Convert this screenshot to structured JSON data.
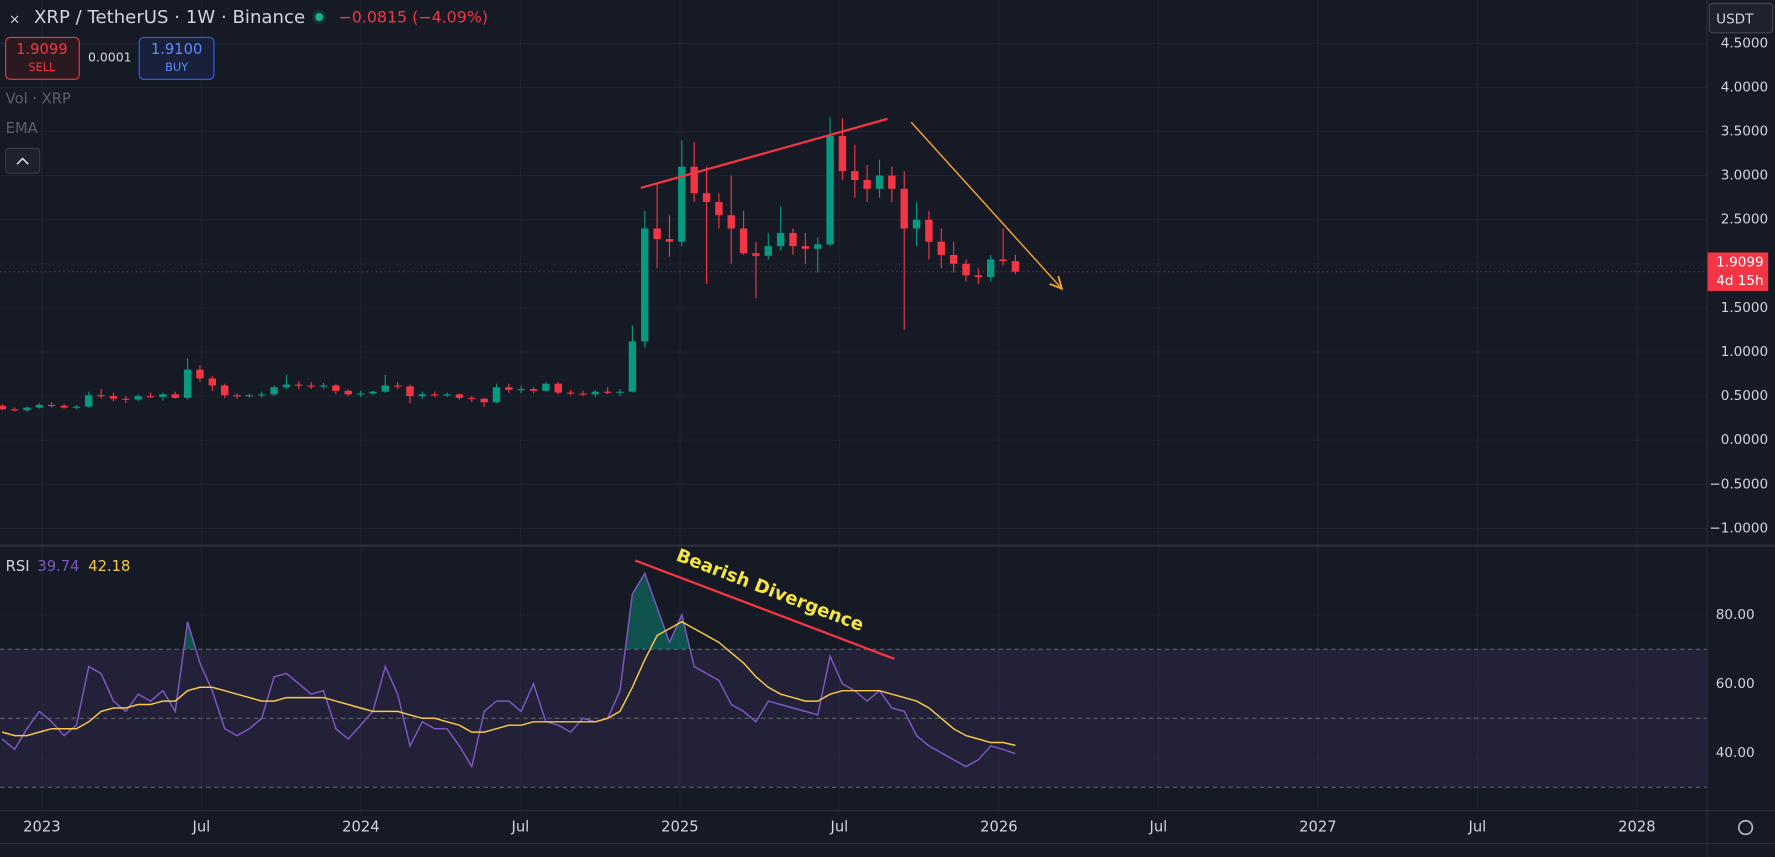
{
  "header": {
    "symbol": "XRP / TetherUS · 1W · Binance",
    "change": "−0.0815 (−4.09%)",
    "sell_price": "1.9099",
    "sell_label": "SELL",
    "spread": "0.0001",
    "buy_price": "1.9100",
    "buy_label": "BUY",
    "indicators": [
      "Vol · XRP",
      "EMA"
    ],
    "currency": "USDT"
  },
  "annotations": {
    "divergence": "Bearish Divergence"
  },
  "chart_data": [
    {
      "type": "candlestick",
      "up_color": "#089981",
      "down_color": "#f23645",
      "candles": [
        [
          0.39,
          0.41,
          0.34,
          0.35
        ],
        [
          0.35,
          0.37,
          0.33,
          0.34
        ],
        [
          0.34,
          0.38,
          0.32,
          0.37
        ],
        [
          0.37,
          0.42,
          0.36,
          0.4
        ],
        [
          0.4,
          0.43,
          0.37,
          0.39
        ],
        [
          0.39,
          0.41,
          0.36,
          0.37
        ],
        [
          0.37,
          0.4,
          0.35,
          0.38
        ],
        [
          0.38,
          0.55,
          0.37,
          0.51
        ],
        [
          0.51,
          0.58,
          0.47,
          0.5
        ],
        [
          0.5,
          0.54,
          0.44,
          0.47
        ],
        [
          0.47,
          0.5,
          0.42,
          0.46
        ],
        [
          0.46,
          0.52,
          0.44,
          0.5
        ],
        [
          0.5,
          0.54,
          0.48,
          0.49
        ],
        [
          0.49,
          0.54,
          0.45,
          0.52
        ],
        [
          0.52,
          0.55,
          0.47,
          0.48
        ],
        [
          0.48,
          0.93,
          0.46,
          0.8
        ],
        [
          0.8,
          0.85,
          0.66,
          0.7
        ],
        [
          0.7,
          0.73,
          0.56,
          0.62
        ],
        [
          0.62,
          0.64,
          0.48,
          0.51
        ],
        [
          0.51,
          0.53,
          0.47,
          0.5
        ],
        [
          0.5,
          0.53,
          0.48,
          0.51
        ],
        [
          0.51,
          0.55,
          0.48,
          0.52
        ],
        [
          0.52,
          0.62,
          0.5,
          0.6
        ],
        [
          0.6,
          0.74,
          0.58,
          0.63
        ],
        [
          0.63,
          0.67,
          0.58,
          0.62
        ],
        [
          0.62,
          0.66,
          0.58,
          0.61
        ],
        [
          0.61,
          0.65,
          0.58,
          0.62
        ],
        [
          0.62,
          0.64,
          0.52,
          0.56
        ],
        [
          0.56,
          0.58,
          0.5,
          0.52
        ],
        [
          0.52,
          0.56,
          0.49,
          0.53
        ],
        [
          0.53,
          0.56,
          0.51,
          0.55
        ],
        [
          0.55,
          0.74,
          0.54,
          0.62
        ],
        [
          0.62,
          0.66,
          0.58,
          0.61
        ],
        [
          0.61,
          0.63,
          0.42,
          0.5
        ],
        [
          0.5,
          0.55,
          0.47,
          0.52
        ],
        [
          0.52,
          0.55,
          0.49,
          0.51
        ],
        [
          0.51,
          0.54,
          0.49,
          0.52
        ],
        [
          0.52,
          0.53,
          0.46,
          0.48
        ],
        [
          0.48,
          0.5,
          0.43,
          0.47
        ],
        [
          0.47,
          0.48,
          0.38,
          0.43
        ],
        [
          0.43,
          0.64,
          0.42,
          0.6
        ],
        [
          0.6,
          0.64,
          0.54,
          0.57
        ],
        [
          0.57,
          0.62,
          0.53,
          0.58
        ],
        [
          0.58,
          0.6,
          0.53,
          0.56
        ],
        [
          0.56,
          0.66,
          0.55,
          0.64
        ],
        [
          0.64,
          0.66,
          0.52,
          0.54
        ],
        [
          0.54,
          0.57,
          0.51,
          0.53
        ],
        [
          0.53,
          0.56,
          0.5,
          0.52
        ],
        [
          0.52,
          0.57,
          0.49,
          0.55
        ],
        [
          0.55,
          0.6,
          0.52,
          0.54
        ],
        [
          0.54,
          0.58,
          0.5,
          0.55
        ],
        [
          0.55,
          1.3,
          0.54,
          1.12
        ],
        [
          1.12,
          2.6,
          1.05,
          2.4
        ],
        [
          2.4,
          2.91,
          1.95,
          2.28
        ],
        [
          2.28,
          2.55,
          2.08,
          2.25
        ],
        [
          2.25,
          3.4,
          2.2,
          3.1
        ],
        [
          3.1,
          3.38,
          2.7,
          2.8
        ],
        [
          2.8,
          3.1,
          1.77,
          2.7
        ],
        [
          2.7,
          2.8,
          2.4,
          2.55
        ],
        [
          2.55,
          3.0,
          2.0,
          2.4
        ],
        [
          2.4,
          2.6,
          2.1,
          2.12
        ],
        [
          2.12,
          2.25,
          1.61,
          2.09
        ],
        [
          2.09,
          2.35,
          2.05,
          2.2
        ],
        [
          2.2,
          2.65,
          2.15,
          2.35
        ],
        [
          2.35,
          2.4,
          2.1,
          2.2
        ],
        [
          2.2,
          2.35,
          2.0,
          2.17
        ],
        [
          2.17,
          2.3,
          1.9,
          2.22
        ],
        [
          2.22,
          3.66,
          2.2,
          3.45
        ],
        [
          3.45,
          3.65,
          2.95,
          3.05
        ],
        [
          3.05,
          3.35,
          2.75,
          2.95
        ],
        [
          2.95,
          3.12,
          2.7,
          2.85
        ],
        [
          2.85,
          3.18,
          2.75,
          3.0
        ],
        [
          3.0,
          3.1,
          2.7,
          2.85
        ],
        [
          2.85,
          3.05,
          1.25,
          2.4
        ],
        [
          2.4,
          2.7,
          2.2,
          2.5
        ],
        [
          2.5,
          2.6,
          2.05,
          2.25
        ],
        [
          2.25,
          2.4,
          1.95,
          2.1
        ],
        [
          2.1,
          2.25,
          1.9,
          2.0
        ],
        [
          2.0,
          2.05,
          1.8,
          1.87
        ],
        [
          1.87,
          1.95,
          1.77,
          1.85
        ],
        [
          1.85,
          2.1,
          1.8,
          2.05
        ],
        [
          2.05,
          2.4,
          1.98,
          2.03
        ],
        [
          2.03,
          2.1,
          1.88,
          1.9099
        ]
      ],
      "countdown": "4d 15h",
      "ylim": [
        -1.17,
        4.99
      ],
      "yticks": [
        {
          "value": -1,
          "label": "−1.0000"
        },
        {
          "value": -0.5,
          "label": "−0.5000"
        },
        {
          "value": 0,
          "label": "0.0000"
        },
        {
          "value": 0.5,
          "label": "0.5000"
        },
        {
          "value": 1,
          "label": "1.0000"
        },
        {
          "value": 1.5,
          "label": "1.5000"
        },
        {
          "value": 2,
          "label": "2.0000"
        },
        {
          "value": 2.5,
          "label": "2.5000"
        },
        {
          "value": 3,
          "label": "3.0000"
        },
        {
          "value": 3.5,
          "label": "3.5000"
        },
        {
          "value": 4,
          "label": "4.0000"
        },
        {
          "value": 4.5,
          "label": "4.5000"
        }
      ],
      "xticks": [
        "2023",
        "Jul",
        "2024",
        "Jul",
        "2025",
        "Jul",
        "2026",
        "Jul",
        "2027",
        "Jul",
        "2028"
      ]
    },
    {
      "type": "line",
      "title": "RSI",
      "series": [
        {
          "color": "#7e57c2",
          "values": [
            44,
            41,
            47,
            52,
            49,
            45,
            48,
            65,
            63,
            55,
            52,
            57,
            55,
            58,
            52,
            78,
            66,
            58,
            47,
            45,
            47,
            50,
            62,
            63,
            60,
            57,
            58,
            47,
            44,
            48,
            52,
            65,
            57,
            42,
            49,
            47,
            47,
            42,
            36,
            52,
            55,
            55,
            52,
            60,
            49,
            48,
            46,
            50,
            49,
            50,
            58,
            86,
            92,
            82,
            72,
            80,
            65,
            63,
            61,
            54,
            52,
            49,
            55,
            54,
            53,
            52,
            51,
            68,
            60,
            58,
            55,
            58,
            53,
            52,
            45,
            42,
            40,
            38,
            36,
            38,
            42,
            41,
            39.74
          ]
        },
        {
          "color": "#f7c948",
          "values": [
            46,
            45,
            45,
            46,
            47,
            47,
            47,
            49,
            52,
            53,
            53,
            54,
            54,
            55,
            55,
            58,
            59,
            59,
            58,
            57,
            56,
            55,
            55,
            56,
            56,
            56,
            56,
            55,
            54,
            53,
            52,
            52,
            52,
            51,
            50,
            50,
            49,
            48,
            46,
            46,
            47,
            48,
            48,
            49,
            49,
            49,
            49,
            49,
            49,
            50,
            52,
            59,
            67,
            74,
            76,
            78,
            76,
            74,
            72,
            69,
            66,
            62,
            59,
            57,
            56,
            55,
            55,
            57,
            58,
            58,
            58,
            58,
            57,
            56,
            55,
            53,
            50,
            47,
            45,
            44,
            43,
            43,
            42.18
          ]
        }
      ],
      "bands": [
        70,
        50,
        30
      ],
      "ylim": [
        23.6,
        99.7
      ],
      "yticks": [
        {
          "value": 40,
          "label": "40.00"
        },
        {
          "value": 60,
          "label": "60.00"
        },
        {
          "value": 80,
          "label": "80.00"
        }
      ]
    }
  ]
}
